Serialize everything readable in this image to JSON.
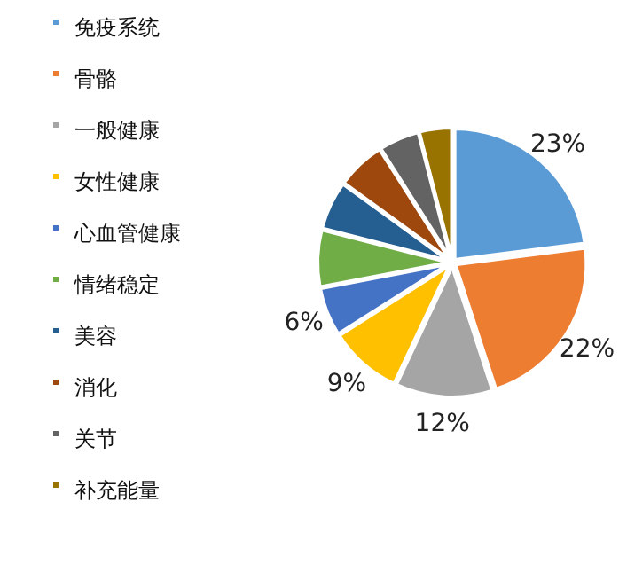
{
  "chart_data": {
    "type": "pie",
    "categories": [
      "免疫系统",
      "骨骼",
      "一般健康",
      "女性健康",
      "心血管健康",
      "情绪稳定",
      "美容",
      "消化",
      "关节",
      "补充能量"
    ],
    "values": [
      23,
      22,
      12,
      9,
      6,
      7,
      6,
      6,
      5,
      4
    ],
    "colors": [
      "#5b9bd5",
      "#ed7d31",
      "#a5a5a5",
      "#ffc000",
      "#4472c4",
      "#70ad47",
      "#255e91",
      "#9e480e",
      "#636363",
      "#997300"
    ],
    "value_labels": [
      "23%",
      "22%",
      "12%",
      "9%",
      "6%",
      null,
      null,
      null,
      null,
      null
    ],
    "legend": "left"
  }
}
